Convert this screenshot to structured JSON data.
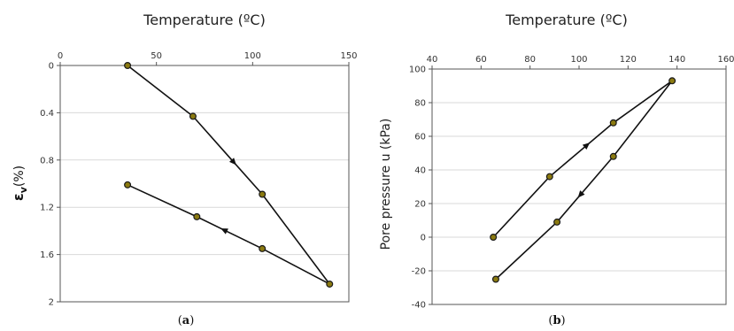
{
  "figure": {
    "panels": [
      {
        "label_open": "(",
        "label_letter": "a",
        "label_close": ")"
      },
      {
        "label_open": "(",
        "label_letter": "b",
        "label_close": ")"
      }
    ]
  },
  "chart_data": [
    {
      "type": "line",
      "title": "Temperature (ºC)",
      "xlabel": "Temperature (ºC)",
      "ylabel_symbol": "ε",
      "ylabel_sub": "v",
      "ylabel_rest": "(%)",
      "x_axis_position": "top",
      "y_axis_inverted": true,
      "xlim": [
        0,
        150
      ],
      "ylim": [
        0,
        2
      ],
      "xticks": [
        "0",
        "50",
        "100",
        "150"
      ],
      "yticks": [
        "0",
        "0.4",
        "0.8",
        "1.2",
        "1.6",
        "2"
      ],
      "grid": true,
      "series": [
        {
          "x": [
            35,
            69,
            105,
            140,
            105,
            71,
            35
          ],
          "y": [
            0.0,
            0.43,
            1.09,
            1.85,
            1.55,
            1.28,
            1.01
          ]
        }
      ],
      "arrows_direction": [
        "heating",
        "cooling"
      ]
    },
    {
      "type": "line",
      "title": "Temperature (ºC)",
      "xlabel": "Temperature (ºC)",
      "ylabel": "Pore pressure u (kPa)",
      "x_axis_position": "top",
      "xlim": [
        40,
        160
      ],
      "ylim": [
        -40,
        100
      ],
      "xticks": [
        "40",
        "60",
        "80",
        "100",
        "120",
        "140",
        "160"
      ],
      "yticks": [
        "100",
        "80",
        "60",
        "40",
        "20",
        "0",
        "-20",
        "-40"
      ],
      "grid": true,
      "series": [
        {
          "x": [
            65,
            88,
            114,
            138,
            114,
            91,
            66
          ],
          "y": [
            0,
            36,
            68,
            93,
            48,
            9,
            -25
          ]
        }
      ],
      "arrows_direction": [
        "heating",
        "cooling"
      ]
    }
  ],
  "colors": {
    "line": "#111111",
    "marker_fill": "#8b7a10",
    "marker_stroke": "#1a1a1a",
    "grid": "#d9d9d9",
    "frame": "#555555"
  }
}
